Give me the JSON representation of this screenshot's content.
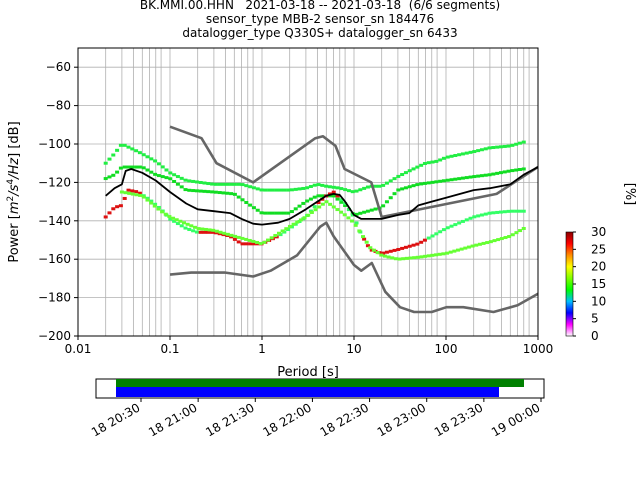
{
  "header": {
    "line1": "BK.MMI.00.HHN   2021-03-18 -- 2021-03-18  (6/6 segments)",
    "line2": "sensor_type MBB-2 sensor_sn 184476",
    "line3": "datalogger_type Q330S+ datalogger_sn 6433"
  },
  "chart_data": [
    {
      "type": "heatmap",
      "title": "",
      "xlabel": "Period [s]",
      "ylabel_parts": [
        "Power [",
        "m",
        "2",
        "/s",
        "4",
        "/Hz",
        "] [dB]"
      ],
      "x_scale": "log",
      "xlim": [
        0.01,
        1000
      ],
      "ylim": [
        -200,
        -50
      ],
      "x_ticks": [
        {
          "value": 0.01,
          "label": "0.01"
        },
        {
          "value": 0.1,
          "label": "0.1"
        },
        {
          "value": 1,
          "label": "1"
        },
        {
          "value": 10,
          "label": "10"
        },
        {
          "value": 100,
          "label": "100"
        },
        {
          "value": 1000,
          "label": "1000"
        }
      ],
      "y_ticks": [
        {
          "value": -60,
          "label": "−60"
        },
        {
          "value": -80,
          "label": "−80"
        },
        {
          "value": -100,
          "label": "−100"
        },
        {
          "value": -120,
          "label": "−120"
        },
        {
          "value": -140,
          "label": "−140"
        },
        {
          "value": -160,
          "label": "−160"
        },
        {
          "value": -180,
          "label": "−180"
        },
        {
          "value": -200,
          "label": "−200"
        }
      ],
      "grid": true,
      "period_gridlines": [
        0.02,
        0.03,
        0.04,
        0.05,
        0.06,
        0.07,
        0.08,
        0.1,
        0.2,
        0.3,
        0.4,
        0.5,
        0.6,
        0.7,
        0.8,
        1,
        2,
        3,
        4,
        5,
        6,
        7,
        8,
        10,
        20,
        30,
        40,
        50,
        60,
        70,
        80,
        100,
        200,
        300,
        400,
        500,
        600,
        700,
        800
      ],
      "colorbar": {
        "label": "[%]",
        "min": 0,
        "max": 30,
        "ticks": [
          "0",
          "5",
          "10",
          "15",
          "20",
          "25",
          "30"
        ],
        "colors": [
          "#ffffff",
          "#ff00ff",
          "#0000ff",
          "#00bfff",
          "#00ff00",
          "#7fff00",
          "#ffff00",
          "#ff8c00",
          "#ff0000",
          "#8b0000"
        ]
      },
      "series": [
        {
          "role": "noise-model-high",
          "color": "#666666",
          "points": [
            [
              0.1,
              -91
            ],
            [
              0.22,
              -97
            ],
            [
              0.32,
              -110
            ],
            [
              0.8,
              -120
            ],
            [
              3.8,
              -97
            ],
            [
              4.6,
              -96
            ],
            [
              6.3,
              -101
            ],
            [
              7.9,
              -113
            ],
            [
              15.4,
              -120
            ],
            [
              20,
              -138
            ],
            [
              354.8,
              -126
            ],
            [
              1000,
              -112
            ]
          ]
        },
        {
          "role": "noise-model-low",
          "color": "#666666",
          "points": [
            [
              0.1,
              -168
            ],
            [
              0.17,
              -167
            ],
            [
              0.4,
              -167
            ],
            [
              0.8,
              -169
            ],
            [
              1.24,
              -166
            ],
            [
              2.4,
              -158
            ],
            [
              4.3,
              -143
            ],
            [
              5,
              -141
            ],
            [
              6,
              -148
            ],
            [
              10,
              -163
            ],
            [
              12,
              -166
            ],
            [
              15.6,
              -162
            ],
            [
              21.9,
              -177
            ],
            [
              31.6,
              -185
            ],
            [
              45,
              -187.5
            ],
            [
              70,
              -187.5
            ],
            [
              101,
              -185
            ],
            [
              154,
              -185
            ],
            [
              328,
              -187.5
            ],
            [
              600,
              -184
            ],
            [
              1000,
              -178
            ]
          ]
        },
        {
          "role": "mean",
          "color": "#000000",
          "points": [
            [
              0.02,
              -127
            ],
            [
              0.025,
              -123
            ],
            [
              0.03,
              -121
            ],
            [
              0.033,
              -114
            ],
            [
              0.038,
              -113
            ],
            [
              0.05,
              -115
            ],
            [
              0.07,
              -119
            ],
            [
              0.1,
              -125
            ],
            [
              0.15,
              -131
            ],
            [
              0.2,
              -134
            ],
            [
              0.3,
              -135
            ],
            [
              0.45,
              -136
            ],
            [
              0.6,
              -139
            ],
            [
              0.8,
              -141.5
            ],
            [
              1,
              -142
            ],
            [
              1.5,
              -141
            ],
            [
              2,
              -139
            ],
            [
              3,
              -134
            ],
            [
              4,
              -130
            ],
            [
              5,
              -127
            ],
            [
              6,
              -126
            ],
            [
              7,
              -126.5
            ],
            [
              8,
              -130
            ],
            [
              10,
              -137
            ],
            [
              12,
              -139
            ],
            [
              20,
              -139
            ],
            [
              30,
              -137
            ],
            [
              40,
              -136
            ],
            [
              50,
              -132
            ],
            [
              70,
              -130
            ],
            [
              100,
              -128
            ],
            [
              200,
              -124
            ],
            [
              300,
              -123
            ],
            [
              500,
              -121
            ],
            [
              700,
              -116
            ],
            [
              1000,
              -112
            ]
          ]
        }
      ],
      "pdf_tracks": [
        {
          "name": "upper-track",
          "points": [
            [
              0.02,
              -110
            ],
            [
              0.025,
              -105
            ],
            [
              0.03,
              -100
            ],
            [
              0.045,
              -104
            ],
            [
              0.07,
              -109
            ],
            [
              0.1,
              -115
            ],
            [
              0.15,
              -119
            ],
            [
              0.3,
              -121
            ],
            [
              0.6,
              -121
            ],
            [
              1,
              -124
            ],
            [
              2,
              -124
            ],
            [
              3,
              -123
            ],
            [
              4,
              -121
            ],
            [
              5,
              -122
            ],
            [
              7,
              -123
            ],
            [
              10,
              -125
            ],
            [
              15,
              -122
            ],
            [
              20,
              -122
            ],
            [
              30,
              -117
            ],
            [
              40,
              -114
            ],
            [
              60,
              -110
            ],
            [
              80,
              -109
            ],
            [
              100,
              -107
            ],
            [
              200,
              -104
            ],
            [
              300,
              -102
            ],
            [
              500,
              -101
            ],
            [
              700,
              -99
            ]
          ]
        },
        {
          "name": "middle-track",
          "points": [
            [
              0.02,
              -118
            ],
            [
              0.025,
              -116
            ],
            [
              0.03,
              -112
            ],
            [
              0.05,
              -112
            ],
            [
              0.07,
              -116
            ],
            [
              0.1,
              -118
            ],
            [
              0.15,
              -124
            ],
            [
              0.3,
              -125
            ],
            [
              0.5,
              -126
            ],
            [
              0.7,
              -131
            ],
            [
              1,
              -136
            ],
            [
              2,
              -136
            ],
            [
              3,
              -130
            ],
            [
              4,
              -127
            ],
            [
              6,
              -127
            ],
            [
              8,
              -132
            ],
            [
              10,
              -137
            ],
            [
              20,
              -133
            ],
            [
              30,
              -124
            ],
            [
              50,
              -121
            ],
            [
              100,
              -119
            ],
            [
              200,
              -117
            ],
            [
              300,
              -116
            ],
            [
              500,
              -114
            ],
            [
              700,
              -113
            ]
          ]
        },
        {
          "name": "lower-track",
          "points": [
            [
              0.02,
              -138
            ],
            [
              0.025,
              -133
            ],
            [
              0.03,
              -132
            ],
            [
              0.035,
              -124
            ],
            [
              0.045,
              -125
            ],
            [
              0.06,
              -129
            ],
            [
              0.08,
              -134
            ],
            [
              0.1,
              -139
            ],
            [
              0.15,
              -144
            ],
            [
              0.2,
              -146
            ],
            [
              0.3,
              -146
            ],
            [
              0.45,
              -148
            ],
            [
              0.6,
              -152
            ],
            [
              1,
              -152
            ],
            [
              1.5,
              -148
            ],
            [
              2,
              -144
            ],
            [
              3,
              -138
            ],
            [
              4,
              -131
            ],
            [
              5,
              -127
            ],
            [
              6,
              -125
            ],
            [
              8,
              -131
            ],
            [
              10,
              -138
            ],
            [
              12,
              -147
            ],
            [
              15,
              -155
            ],
            [
              20,
              -157
            ],
            [
              30,
              -155
            ],
            [
              50,
              -152
            ],
            [
              100,
              -144
            ],
            [
              200,
              -138
            ],
            [
              300,
              -136
            ],
            [
              500,
              -135
            ],
            [
              700,
              -135
            ]
          ]
        },
        {
          "name": "bottom-track",
          "points": [
            [
              0.03,
              -125
            ],
            [
              0.05,
              -127
            ],
            [
              0.08,
              -135
            ],
            [
              0.1,
              -138
            ],
            [
              0.2,
              -144
            ],
            [
              0.3,
              -145
            ],
            [
              0.5,
              -148
            ],
            [
              1,
              -152
            ],
            [
              2,
              -143
            ],
            [
              3,
              -138
            ],
            [
              5,
              -130
            ],
            [
              8,
              -137
            ],
            [
              10,
              -141
            ],
            [
              15,
              -154
            ],
            [
              20,
              -158
            ],
            [
              30,
              -160
            ],
            [
              50,
              -159
            ],
            [
              100,
              -157
            ],
            [
              200,
              -153
            ],
            [
              300,
              -151
            ],
            [
              500,
              -148
            ],
            [
              700,
              -144
            ]
          ]
        }
      ]
    },
    {
      "type": "timeline",
      "x_ticks": [
        "18 20:30",
        "18 21:00",
        "18 21:30",
        "18 22:00",
        "18 22:30",
        "18 23:00",
        "18 23:30",
        "19 00:00"
      ],
      "bars": [
        {
          "role": "data-coverage",
          "color": "#008000"
        },
        {
          "role": "psd-coverage",
          "color": "#0000ff"
        }
      ]
    }
  ]
}
